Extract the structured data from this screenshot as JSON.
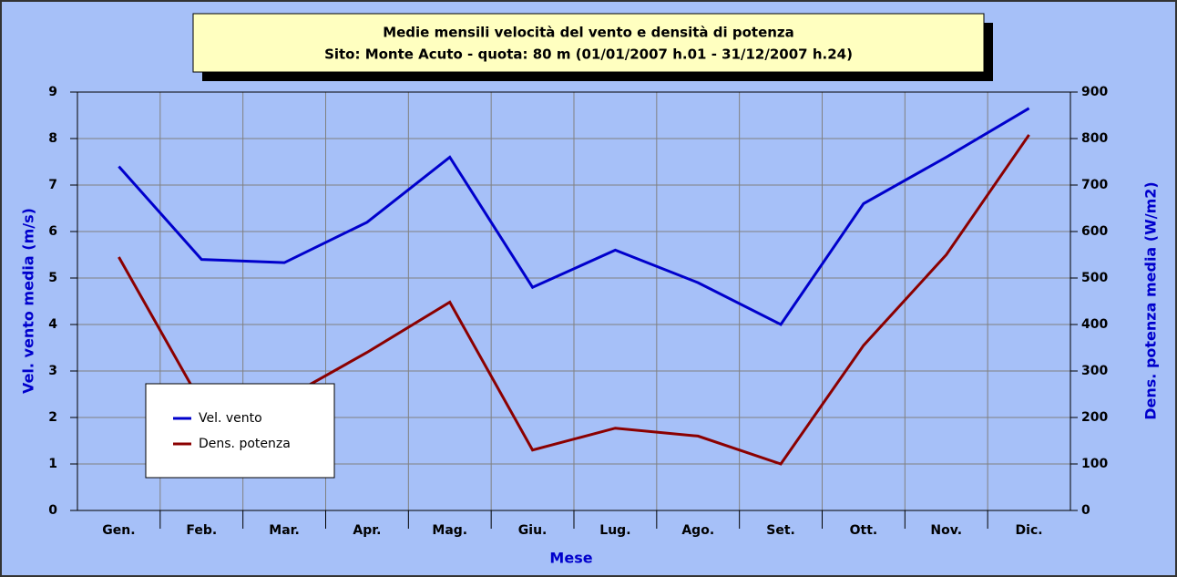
{
  "chart_data": {
    "type": "line",
    "title": "Medie mensili velocità del vento e densità di potenza",
    "subtitle": "Sito: Monte Acuto  -  quota: 80 m  (01/01/2007 h.01 - 31/12/2007 h.24)",
    "x_label": "Mese",
    "y_label": "Vel. vento media (m/s)",
    "y2_label": "Dens. potenza media (W/m2)",
    "categories": [
      "Gen.",
      "Feb.",
      "Mar.",
      "Apr.",
      "Mag.",
      "Giu.",
      "Lug.",
      "Ago.",
      "Set.",
      "Ott.",
      "Nov.",
      "Dic."
    ],
    "series": [
      {
        "name": "Vel. vento",
        "color": "#0000cc",
        "values": [
          7.4,
          5.4,
          5.33,
          6.2,
          7.6,
          4.8,
          5.6,
          4.9,
          4.0,
          6.6,
          7.6,
          8.65
        ]
      },
      {
        "name": "Dens. potenza",
        "color": "#8b0000",
        "axis": "y2",
        "values": [
          545,
          230,
          240,
          340,
          448,
          130,
          177,
          160,
          100,
          355,
          550,
          808
        ]
      }
    ],
    "ylim": [
      0,
      9
    ],
    "yticks": [
      0,
      1,
      2,
      3,
      4,
      5,
      6,
      7,
      8,
      9
    ],
    "y2lim": [
      0,
      900
    ],
    "y2ticks": [
      0,
      100,
      200,
      300,
      400,
      500,
      600,
      700,
      800,
      900
    ],
    "grid": true,
    "legend": "lower left"
  }
}
